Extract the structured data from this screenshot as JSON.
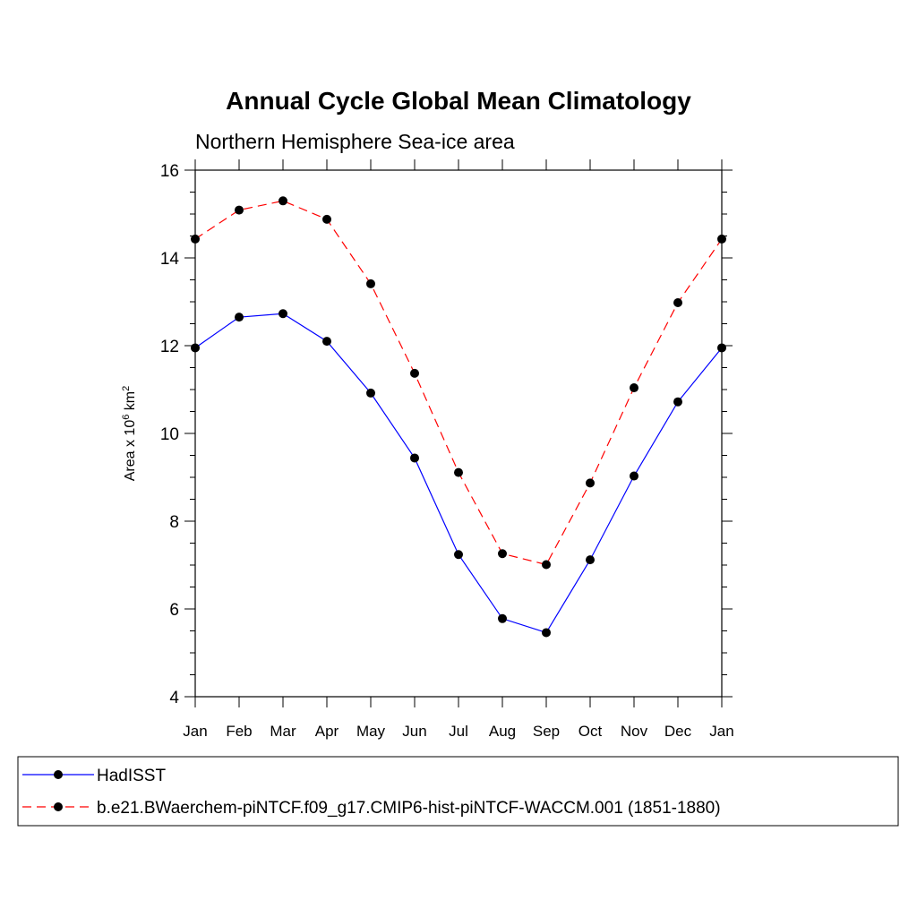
{
  "chart_data": {
    "type": "line",
    "title": "Annual Cycle Global Mean Climatology",
    "subtitle": "Northern Hemisphere Sea-ice area",
    "ylabel_main": "Area x 10",
    "ylabel_exp": "6",
    "ylabel_unit": " km",
    "ylabel_unit_exp": "2",
    "categories": [
      "Jan",
      "Feb",
      "Mar",
      "Apr",
      "May",
      "Jun",
      "Jul",
      "Aug",
      "Sep",
      "Oct",
      "Nov",
      "Dec",
      "Jan"
    ],
    "ylim": [
      4,
      16
    ],
    "yticks": [
      "4",
      "6",
      "8",
      "10",
      "12",
      "14",
      "16"
    ],
    "series": [
      {
        "name": "HadISST",
        "color": "#0000ff",
        "dash": "solid",
        "values": [
          11.95,
          12.65,
          12.73,
          12.1,
          10.92,
          9.44,
          7.24,
          5.78,
          5.46,
          7.12,
          9.03,
          10.72,
          11.95
        ]
      },
      {
        "name": "b.e21.BWaerchem-piNTCF.f09_g17.CMIP6-hist-piNTCF-WACCM.001 (1851-1880)",
        "color": "#ff0000",
        "dash": "dashed",
        "values": [
          14.43,
          15.09,
          15.3,
          14.88,
          13.41,
          11.37,
          9.11,
          7.26,
          7.01,
          8.87,
          11.04,
          12.98,
          14.43
        ]
      }
    ],
    "grid": false,
    "legend_position": "bottom"
  }
}
